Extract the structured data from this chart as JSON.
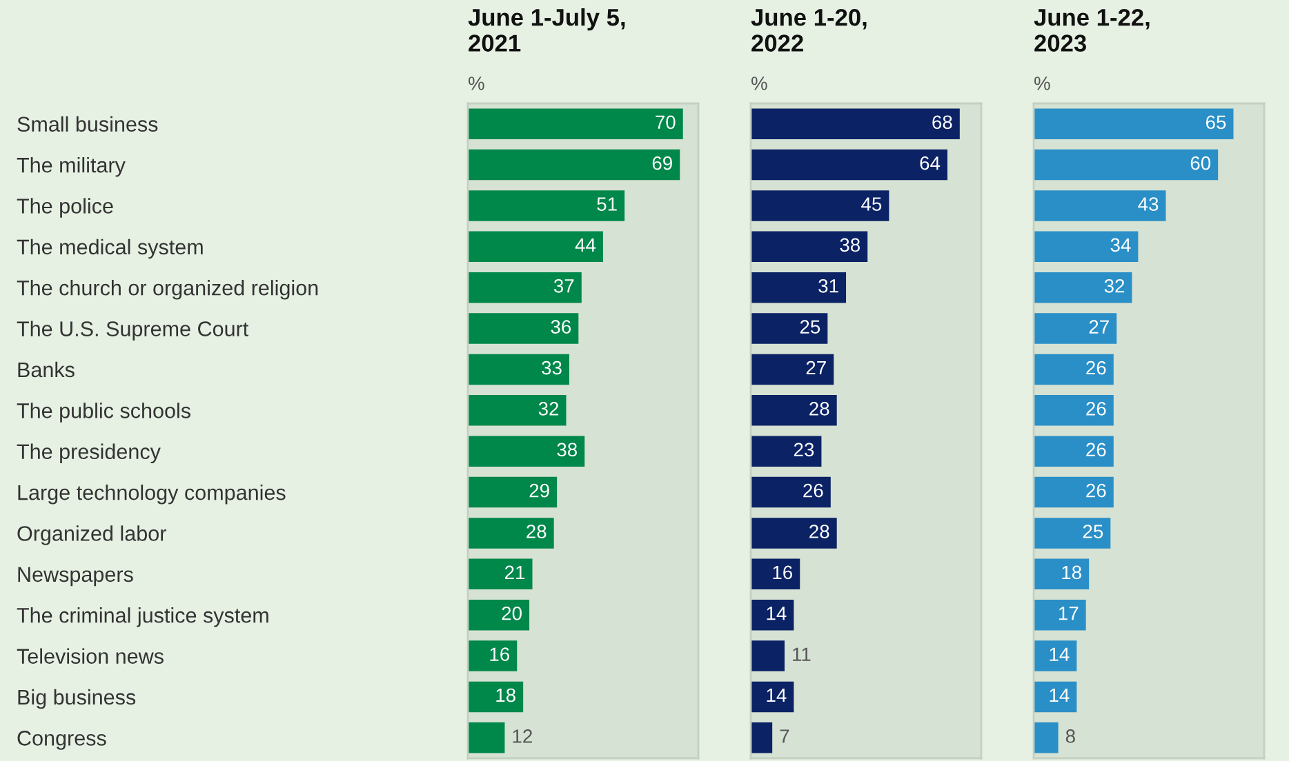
{
  "chart_data": [
    {
      "type": "bar",
      "orientation": "horizontal",
      "title": "June 1-July 5,\n2021",
      "xlabel": "%",
      "color": "#00874a",
      "data_labels": true,
      "xlim": [
        0,
        75
      ],
      "tick_labels": "y",
      "categories": [
        "Small business",
        "The military",
        "The police",
        "The medical system",
        "The church or organized religion",
        "The U.S. Supreme Court",
        "Banks",
        "The public schools",
        "The presidency",
        "Large technology companies",
        "Organized labor",
        "Newspapers",
        "The criminal justice system",
        "Television news",
        "Big business",
        "Congress"
      ],
      "values": [
        70,
        69,
        51,
        44,
        37,
        36,
        33,
        32,
        38,
        29,
        28,
        21,
        20,
        16,
        18,
        12
      ]
    },
    {
      "type": "bar",
      "orientation": "horizontal",
      "title": "June 1-20,\n2022",
      "xlabel": "%",
      "color": "#0b2265",
      "data_labels": true,
      "xlim": [
        0,
        75
      ],
      "tick_labels": false,
      "categories": [
        null,
        null,
        null,
        null,
        null,
        null,
        null,
        null,
        null,
        null,
        null,
        null,
        null,
        null,
        null,
        null
      ],
      "values": [
        68,
        64,
        45,
        38,
        31,
        25,
        27,
        28,
        23,
        26,
        28,
        16,
        14,
        11,
        14,
        7
      ]
    },
    {
      "type": "bar",
      "orientation": "horizontal",
      "title": "June 1-22,\n2023",
      "xlabel": "%",
      "color": "#2a8fc7",
      "data_labels": true,
      "xlim": [
        0,
        75
      ],
      "tick_labels": false,
      "categories": [
        null,
        null,
        null,
        null,
        null,
        null,
        null,
        null,
        null,
        null,
        null,
        null,
        null,
        null,
        null,
        null
      ],
      "values": [
        65,
        60,
        43,
        34,
        32,
        27,
        26,
        26,
        26,
        26,
        25,
        18,
        17,
        14,
        14,
        8
      ]
    }
  ]
}
